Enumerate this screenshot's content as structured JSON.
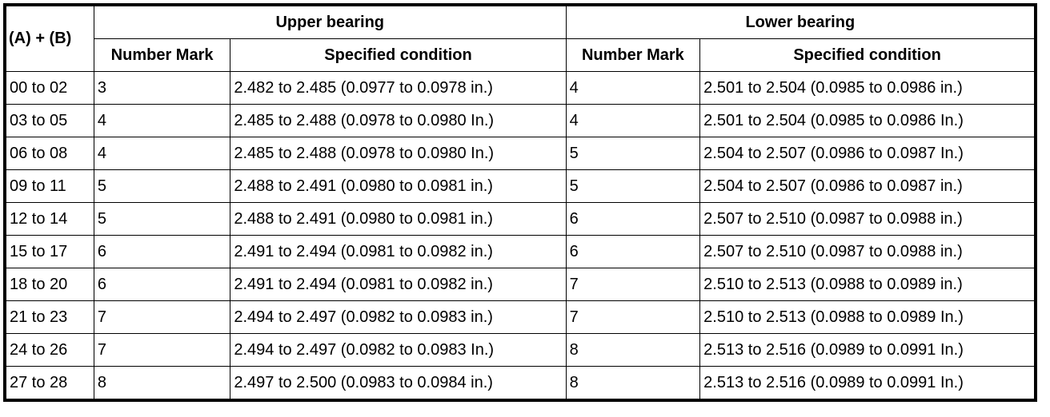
{
  "table": {
    "header": [
      "(A) + (B)",
      "Upper bearing",
      "Lower bearing"
    ],
    "subheader": [
      "Number Mark",
      "Specified condition",
      "Number Mark",
      "Specified condition"
    ],
    "rows": [
      [
        "00 to 02",
        "3",
        "2.482 to 2.485 (0.0977 to 0.0978 in.)",
        "4",
        "2.501 to 2.504 (0.0985 to 0.0986 in.)"
      ],
      [
        "03 to 05",
        "4",
        "2.485 to 2.488 (0.0978 to 0.0980 In.)",
        "4",
        "2.501 to 2.504 (0.0985 to 0.0986 In.)"
      ],
      [
        "06 to 08",
        "4",
        "2.485 to 2.488 (0.0978 to 0.0980 In.)",
        "5",
        "2.504 to 2.507 (0.0986 to 0.0987 In.)"
      ],
      [
        "09 to 11",
        "5",
        "2.488 to 2.491 (0.0980 to 0.0981 in.)",
        "5",
        "2.504 to 2.507 (0.0986 to 0.0987 in.)"
      ],
      [
        "12 to 14",
        "5",
        "2.488 to 2.491 (0.0980 to 0.0981 in.)",
        "6",
        "2.507 to 2.510 (0.0987 to 0.0988 in.)"
      ],
      [
        "15 to 17",
        "6",
        "2.491 to 2.494 (0.0981 to 0.0982 in.)",
        "6",
        "2.507 to 2.510 (0.0987 to 0.0988 in.)"
      ],
      [
        "18 to 20",
        "6",
        "2.491 to 2.494 (0.0981 to 0.0982 in.)",
        "7",
        "2.510 to 2.513 (0.0988 to 0.0989 in.)"
      ],
      [
        "21 to 23",
        "7",
        "2.494 to 2.497 (0.0982 to 0.0983 in.)",
        "7",
        "2.510 to 2.513 (0.0988 to 0.0989 In.)"
      ],
      [
        "24 to 26",
        "7",
        "2.494 to 2.497 (0.0982 to 0.0983 In.)",
        "8",
        "2.513 to 2.516 (0.0989 to 0.0991 In.)"
      ],
      [
        "27 to 28",
        "8",
        "2.497 to 2.500 (0.0983 to 0.0984 in.)",
        "8",
        "2.513 to 2.516 (0.0989 to 0.0991 In.)"
      ]
    ]
  }
}
